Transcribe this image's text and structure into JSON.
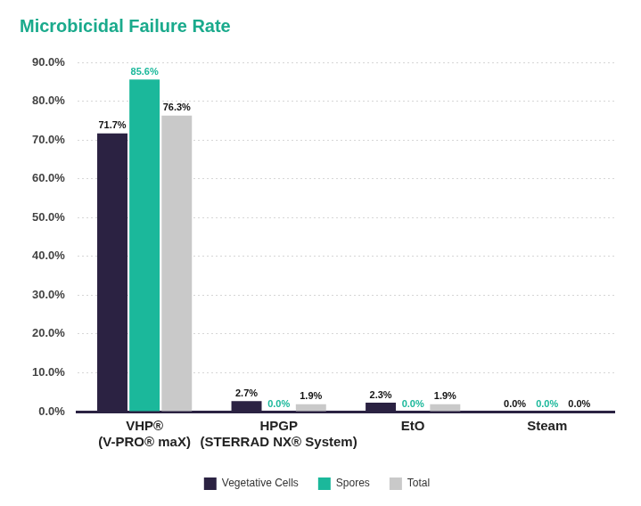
{
  "chart_data": {
    "type": "bar",
    "title": "Microbicidal Failure Rate",
    "categories": [
      [
        "VHP®",
        "(V-PRO® maX)"
      ],
      [
        "HPGP",
        "(STERRAD NX® System)"
      ],
      "EtO",
      "Steam"
    ],
    "series": [
      {
        "name": "Vegetative Cells",
        "color": "#2b2242",
        "values": [
          71.7,
          2.7,
          2.3,
          0.0
        ],
        "value_labels": [
          "71.7%",
          "2.7%",
          "2.3%",
          "0.0%"
        ]
      },
      {
        "name": "Spores",
        "color": "#1bb89b",
        "values": [
          85.6,
          0.0,
          0.0,
          0.0
        ],
        "value_labels": [
          "85.6%",
          "0.0%",
          "0.0%",
          "0.0%"
        ]
      },
      {
        "name": "Total",
        "color": "#c9c9c9",
        "values": [
          76.3,
          1.9,
          1.9,
          0.0
        ],
        "value_labels": [
          "76.3%",
          "1.9%",
          "1.9%",
          "0.0%"
        ]
      }
    ],
    "ylim": [
      0,
      90
    ],
    "yticks": [
      {
        "value": 0,
        "label": "0.0%"
      },
      {
        "value": 10,
        "label": "10.0%"
      },
      {
        "value": 20,
        "label": "20.0%"
      },
      {
        "value": 30,
        "label": "30.0%"
      },
      {
        "value": 40,
        "label": "40.0%"
      },
      {
        "value": 50,
        "label": "50.0%"
      },
      {
        "value": 60,
        "label": "60.0%"
      },
      {
        "value": 70,
        "label": "70.0%"
      },
      {
        "value": 80,
        "label": "80.0%"
      },
      {
        "value": 90,
        "label": "90.0%"
      }
    ],
    "grid": true,
    "legend": "bottom",
    "data_labels": true
  }
}
